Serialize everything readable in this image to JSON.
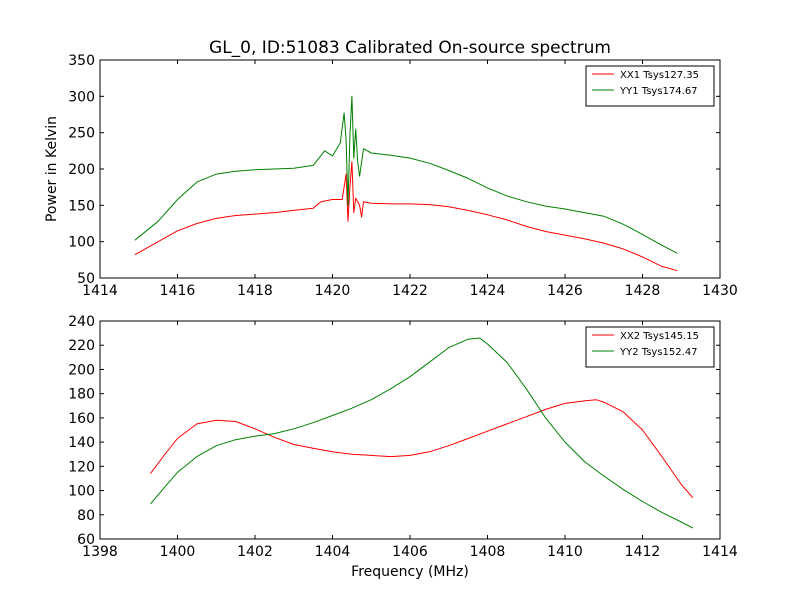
{
  "chart_data": [
    {
      "type": "line",
      "title": "GL_0, ID:51083 Calibrated On-source spectrum",
      "xlabel": "",
      "ylabel": "Power in Kelvin",
      "xlim": [
        1414,
        1430
      ],
      "ylim": [
        50,
        350
      ],
      "xticks": [
        "1414",
        "1416",
        "1418",
        "1420",
        "1422",
        "1424",
        "1426",
        "1428",
        "1430"
      ],
      "yticks": [
        "50",
        "100",
        "150",
        "200",
        "250",
        "300",
        "350"
      ],
      "legend_position": "top-right",
      "series": [
        {
          "name": "XX1 Tsys127.35",
          "color": "#ff0000",
          "x": [
            1414.9,
            1415.5,
            1416,
            1416.5,
            1417,
            1417.5,
            1418,
            1418.5,
            1419,
            1419.5,
            1419.7,
            1420.0,
            1420.25,
            1420.35,
            1420.4,
            1420.45,
            1420.5,
            1420.55,
            1420.6,
            1420.7,
            1420.75,
            1420.8,
            1421,
            1421.5,
            1422,
            1422.5,
            1423,
            1423.5,
            1424,
            1424.5,
            1425,
            1425.5,
            1426,
            1426.5,
            1427,
            1427.5,
            1428,
            1428.5,
            1428.9
          ],
          "y": [
            82,
            100,
            115,
            125,
            132,
            136,
            138,
            140,
            143,
            146,
            155,
            158,
            158,
            193,
            128,
            175,
            210,
            140,
            160,
            150,
            134,
            155,
            153,
            152,
            152,
            151,
            148,
            143,
            137,
            130,
            121,
            114,
            109,
            104,
            98,
            90,
            79,
            66,
            60
          ]
        },
        {
          "name": "YY1 Tsys174.67",
          "color": "#008000",
          "x": [
            1414.9,
            1415.5,
            1416,
            1416.5,
            1417,
            1417.5,
            1418,
            1418.5,
            1419,
            1419.5,
            1419.8,
            1420.0,
            1420.2,
            1420.3,
            1420.35,
            1420.4,
            1420.45,
            1420.5,
            1420.55,
            1420.6,
            1420.65,
            1420.7,
            1420.8,
            1421,
            1421.5,
            1422,
            1422.5,
            1423,
            1423.5,
            1424,
            1424.5,
            1425,
            1425.5,
            1426,
            1426.5,
            1427,
            1427.5,
            1428,
            1428.5,
            1428.9
          ],
          "y": [
            102,
            128,
            158,
            182,
            193,
            197,
            199,
            200,
            201,
            205,
            225,
            218,
            236,
            277,
            240,
            150,
            245,
            300,
            215,
            255,
            210,
            190,
            228,
            222,
            219,
            215,
            208,
            198,
            187,
            174,
            163,
            155,
            149,
            145,
            140,
            135,
            124,
            110,
            95,
            84
          ]
        }
      ]
    },
    {
      "type": "line",
      "title": "",
      "xlabel": "Frequency (MHz)",
      "ylabel": "",
      "xlim": [
        1398,
        1414
      ],
      "ylim": [
        60,
        240
      ],
      "xticks": [
        "1398",
        "1400",
        "1402",
        "1404",
        "1406",
        "1408",
        "1410",
        "1412",
        "1414"
      ],
      "yticks": [
        "60",
        "80",
        "100",
        "120",
        "140",
        "160",
        "180",
        "200",
        "220",
        "240"
      ],
      "legend_position": "top-right",
      "series": [
        {
          "name": "XX2 Tsys145.15",
          "color": "#ff0000",
          "x": [
            1399.3,
            1399.7,
            1400,
            1400.5,
            1401,
            1401.5,
            1402,
            1402.5,
            1403,
            1403.5,
            1404,
            1404.5,
            1405,
            1405.5,
            1406,
            1406.5,
            1407,
            1407.5,
            1408,
            1408.5,
            1409,
            1409.5,
            1410,
            1410.5,
            1410.8,
            1411,
            1411.5,
            1412,
            1412.5,
            1413,
            1413.3
          ],
          "y": [
            114,
            131,
            143,
            155,
            158,
            157,
            151,
            144,
            138,
            135,
            132,
            130,
            129,
            128,
            129,
            132,
            137,
            143,
            149,
            155,
            161,
            167,
            172,
            174,
            175,
            173,
            165,
            150,
            128,
            105,
            94
          ]
        },
        {
          "name": "YY2 Tsys152.47",
          "color": "#008000",
          "x": [
            1399.3,
            1399.7,
            1400,
            1400.5,
            1401,
            1401.5,
            1402,
            1402.5,
            1403,
            1403.5,
            1404,
            1404.5,
            1405,
            1405.5,
            1406,
            1406.5,
            1407,
            1407.5,
            1407.8,
            1408,
            1408.5,
            1409,
            1409.5,
            1410,
            1410.5,
            1411,
            1411.5,
            1412,
            1412.5,
            1413,
            1413.3
          ],
          "y": [
            89,
            104,
            115,
            128,
            137,
            142,
            145,
            147,
            151,
            156,
            162,
            168,
            175,
            184,
            194,
            206,
            218,
            225,
            226,
            221,
            206,
            184,
            160,
            140,
            124,
            112,
            101,
            91,
            82,
            74,
            69
          ]
        }
      ]
    }
  ]
}
